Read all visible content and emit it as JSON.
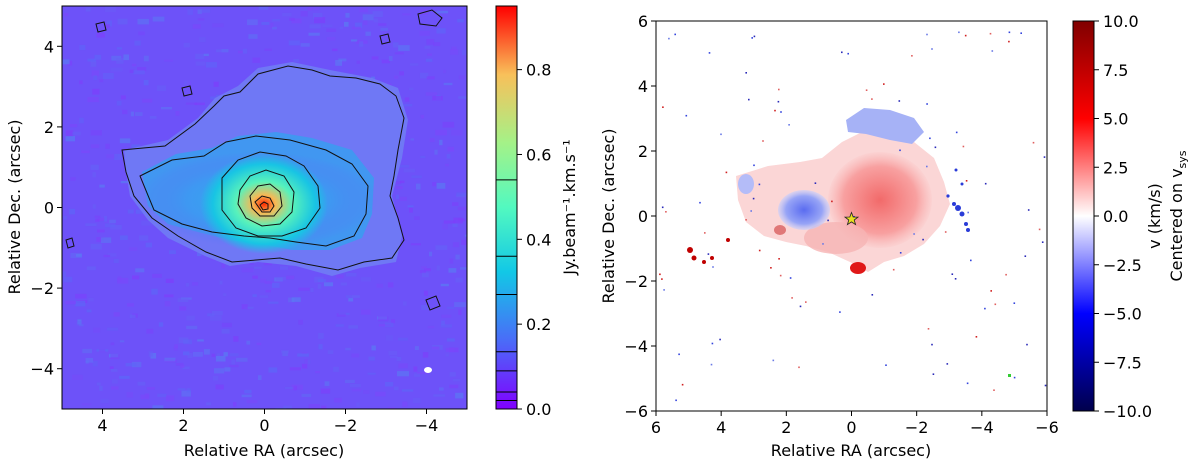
{
  "chart_data": [
    {
      "type": "heatmap",
      "panel": "left",
      "title": "",
      "xlabel": "Relative RA (arcsec)",
      "ylabel": "Relative Dec. (arcsec)",
      "xlim": [
        5,
        -5
      ],
      "ylim": [
        -5,
        5
      ],
      "xticks": [
        4,
        2,
        0,
        -2,
        -4
      ],
      "yticks": [
        4,
        2,
        0,
        -2,
        -4
      ],
      "xtick_labels": [
        "4",
        "2",
        "0",
        "−2",
        "−4"
      ],
      "ytick_labels": [
        "4",
        "2",
        "0",
        "−2",
        "−4"
      ],
      "colormap": "rainbow",
      "colorbar": {
        "label": "Jy.beam⁻¹.km.s⁻¹",
        "range": [
          0.0,
          0.95
        ],
        "ticks": [
          0.0,
          0.2,
          0.4,
          0.6,
          0.8
        ],
        "tick_labels": [
          "0.0",
          "0.2",
          "0.4",
          "0.6",
          "0.8"
        ],
        "contour_levels": [
          0.02,
          0.04,
          0.09,
          0.135,
          0.27,
          0.36,
          0.54
        ]
      },
      "annotations": [
        "beam ellipse at (-4, -4.05)",
        "peak emission at (0, 0)"
      ]
    },
    {
      "type": "heatmap",
      "panel": "right",
      "title": "",
      "xlabel": "Relative RA (arcsec)",
      "ylabel": "Relative Dec. (arcsec)",
      "xlim": [
        6,
        -6
      ],
      "ylim": [
        -6,
        6
      ],
      "xticks": [
        6,
        4,
        2,
        0,
        -2,
        -4,
        -6
      ],
      "yticks": [
        6,
        4,
        2,
        0,
        -2,
        -4,
        -6
      ],
      "xtick_labels": [
        "6",
        "4",
        "2",
        "0",
        "−2",
        "−4",
        "−6"
      ],
      "ytick_labels": [
        "6",
        "4",
        "2",
        "0",
        "−2",
        "−4",
        "−6"
      ],
      "colormap": "seismic",
      "colorbar": {
        "label_line1": "v (km/s)",
        "label_line2_main": "Centered on v",
        "label_line2_sub": "sys",
        "range": [
          -10,
          10
        ],
        "ticks": [
          10.0,
          7.5,
          5.0,
          2.5,
          0.0,
          -2.5,
          -5.0,
          -7.5,
          -10.0
        ],
        "tick_labels": [
          "10.0",
          "7.5",
          "5.0",
          "2.5",
          "0.0",
          "−2.5",
          "−5.0",
          "−7.5",
          "−10.0"
        ]
      },
      "annotations": [
        "star marker at (0, 0)"
      ]
    }
  ]
}
